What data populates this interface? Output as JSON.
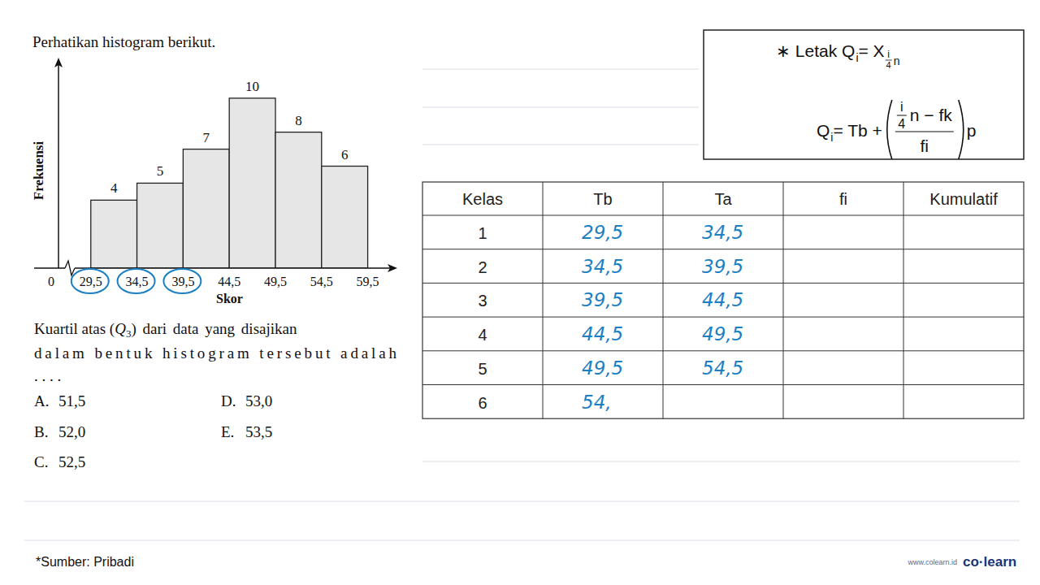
{
  "intro": "Perhatikan histogram berikut.",
  "chart_data": {
    "type": "histogram",
    "xlabel": "Skor",
    "ylabel": "Frekuensi",
    "bins": [
      29.5,
      34.5,
      39.5,
      44.5,
      49.5,
      54.5,
      59.5
    ],
    "values": [
      4,
      5,
      7,
      10,
      8,
      6
    ],
    "color": "#e6e6e6",
    "xlim": [
      26,
      62
    ],
    "ylim": [
      0,
      12
    ],
    "xticks": [
      {
        "value": 29.5,
        "label": "29,5"
      },
      {
        "value": 34.5,
        "label": "34,5"
      },
      {
        "value": 39.5,
        "label": "39,5"
      },
      {
        "value": 44.5,
        "label": "44,5"
      },
      {
        "value": 49.5,
        "label": "49,5"
      },
      {
        "value": 54.5,
        "label": "54,5"
      },
      {
        "value": 59.5,
        "label": "59,5"
      }
    ],
    "annotations": [
      "0"
    ],
    "grid": false,
    "data_labels": true,
    "tick_labels": "x"
  },
  "question": {
    "prefix": "Kuartil atas (",
    "q": "Q",
    "q_sub": "3",
    "line1_rest": ") dari data yang disajikan",
    "line2": "dalam bentuk histogram tersebut adalah",
    "line3": ". . . ."
  },
  "options": [
    {
      "letter": "A.",
      "value": "51,5"
    },
    {
      "letter": "B.",
      "value": "52,0"
    },
    {
      "letter": "C.",
      "value": "52,5"
    },
    {
      "letter": "D.",
      "value": "53,0"
    },
    {
      "letter": "E.",
      "value": "53,5"
    }
  ],
  "formula": {
    "line1": {
      "prefix": "∗ Letak Q",
      "sub": "i",
      "eq": " = X",
      "sub_num": "i",
      "sub_den": "4",
      "sub_tail": "n"
    },
    "line2": {
      "lhs": "Q",
      "lhs_sub": "i",
      "eq": " = Tb + ",
      "frac_num": "i",
      "frac_den": "4",
      "num_tail": "n − fk",
      "den": "fi",
      "tail": "p"
    }
  },
  "table": {
    "header": [
      "Kelas",
      "Tb",
      "Ta",
      "fi",
      "Kumulatif"
    ],
    "rows": [
      [
        "1",
        "29,5",
        "34,5",
        null,
        null
      ],
      [
        "2",
        "34,5",
        "39,5",
        null,
        null
      ],
      [
        "3",
        "39,5",
        "44,5",
        null,
        null
      ],
      [
        "4",
        "44,5",
        "49,5",
        null,
        null
      ],
      [
        "5",
        "49,5",
        "54,5",
        null,
        null
      ],
      [
        "6",
        "54,",
        null,
        null,
        null
      ]
    ]
  },
  "footer": {
    "source": "*Sumber: Pribadi",
    "site": "www.colearn.id",
    "brand": "co·learn"
  }
}
